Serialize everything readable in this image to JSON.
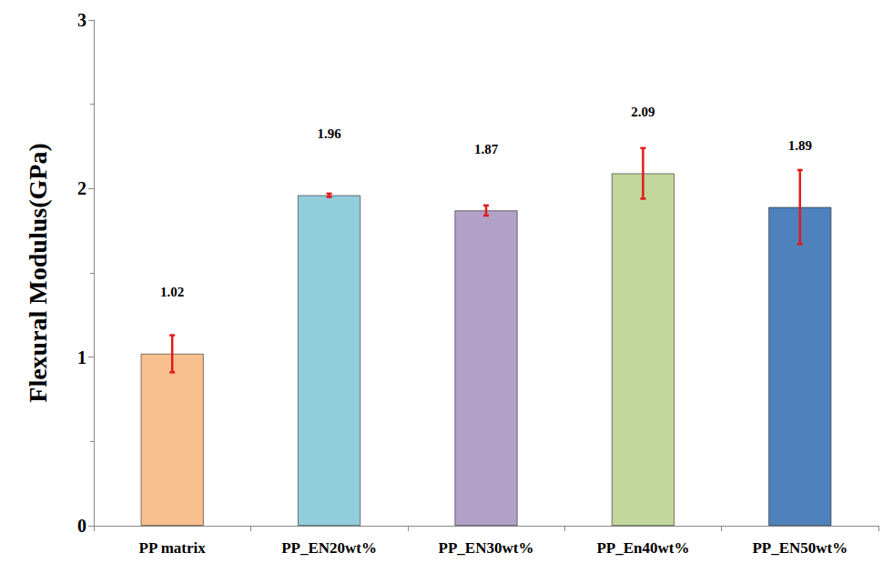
{
  "chart_data": {
    "type": "bar",
    "ylabel": "Flexural Modulus(GPa)",
    "categories": [
      "PP matrix",
      "PP_EN20wt%",
      "PP_EN30wt%",
      "PP_En40wt%",
      "PP_EN50wt%"
    ],
    "values": [
      1.02,
      1.96,
      1.87,
      2.09,
      1.89
    ],
    "error": [
      0.11,
      0.01,
      0.03,
      0.15,
      0.22
    ],
    "colors": [
      "#f9c08f",
      "#92cddc",
      "#b2a1c7",
      "#c3d69b",
      "#4f81bd"
    ],
    "error_color": "#e31a1c",
    "ylim": [
      0,
      3
    ],
    "yticks": [
      0,
      1,
      2,
      3
    ],
    "grid": false,
    "data_labels": true
  }
}
